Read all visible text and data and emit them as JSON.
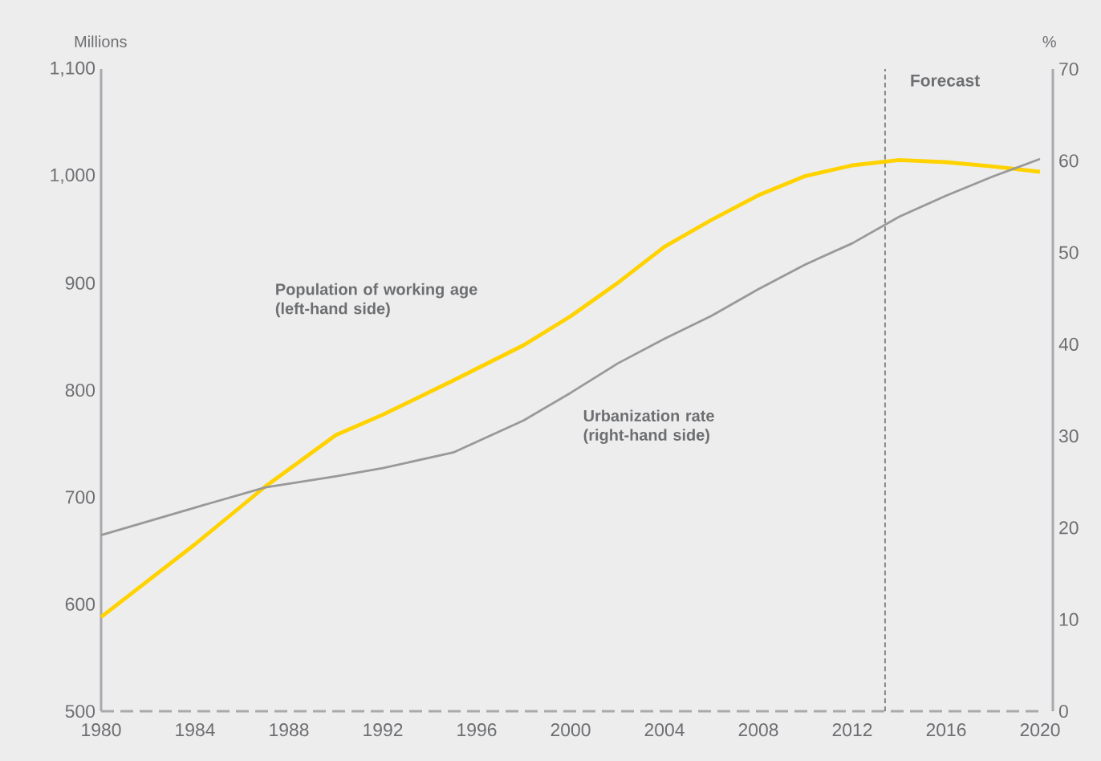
{
  "chart_data": {
    "type": "line",
    "ylabel": "Millions",
    "y2label": "%",
    "x": [
      1980,
      1982,
      1984,
      1987,
      1990,
      1992,
      1995,
      1998,
      2000,
      2002,
      2004,
      2006,
      2008,
      2010,
      2012,
      2014,
      2016,
      2018,
      2020
    ],
    "series": [
      {
        "name": "Population of working age (left-hand side)",
        "color": "#ffd200",
        "values": [
          588,
          622,
          656,
          710,
          758,
          777,
          809,
          842,
          869,
          900,
          934,
          959,
          982,
          1000,
          1010,
          1015,
          1013,
          1009,
          1004
        ]
      },
      {
        "name": "Urbanization rate (right-hand side)",
        "color": "#999999",
        "axis": "y2",
        "values": [
          19.2,
          20.7,
          22.2,
          24.4,
          25.6,
          26.5,
          28.2,
          31.7,
          34.7,
          37.9,
          40.6,
          43.1,
          46.0,
          48.7,
          51.0,
          53.9,
          56.2,
          58.3,
          60.2
        ]
      }
    ],
    "xlim": [
      1980,
      2020
    ],
    "xticks": [
      1980,
      1984,
      1988,
      1992,
      1996,
      2000,
      2004,
      2008,
      2012,
      2016,
      2020
    ],
    "ylim": [
      500,
      1100
    ],
    "yticks": [
      500,
      600,
      700,
      800,
      900,
      {
        "value": 1000,
        "label": "1,000"
      },
      {
        "value": 1100,
        "label": "1,100"
      }
    ],
    "y2lim": [
      0,
      70
    ],
    "y2ticks": [
      0,
      10,
      20,
      30,
      40,
      50,
      60,
      70
    ],
    "ref_lines": [
      {
        "axis": "x",
        "value": 2013.4,
        "label": "Forecast",
        "color": "#888888",
        "line_style": "dashed"
      }
    ]
  }
}
